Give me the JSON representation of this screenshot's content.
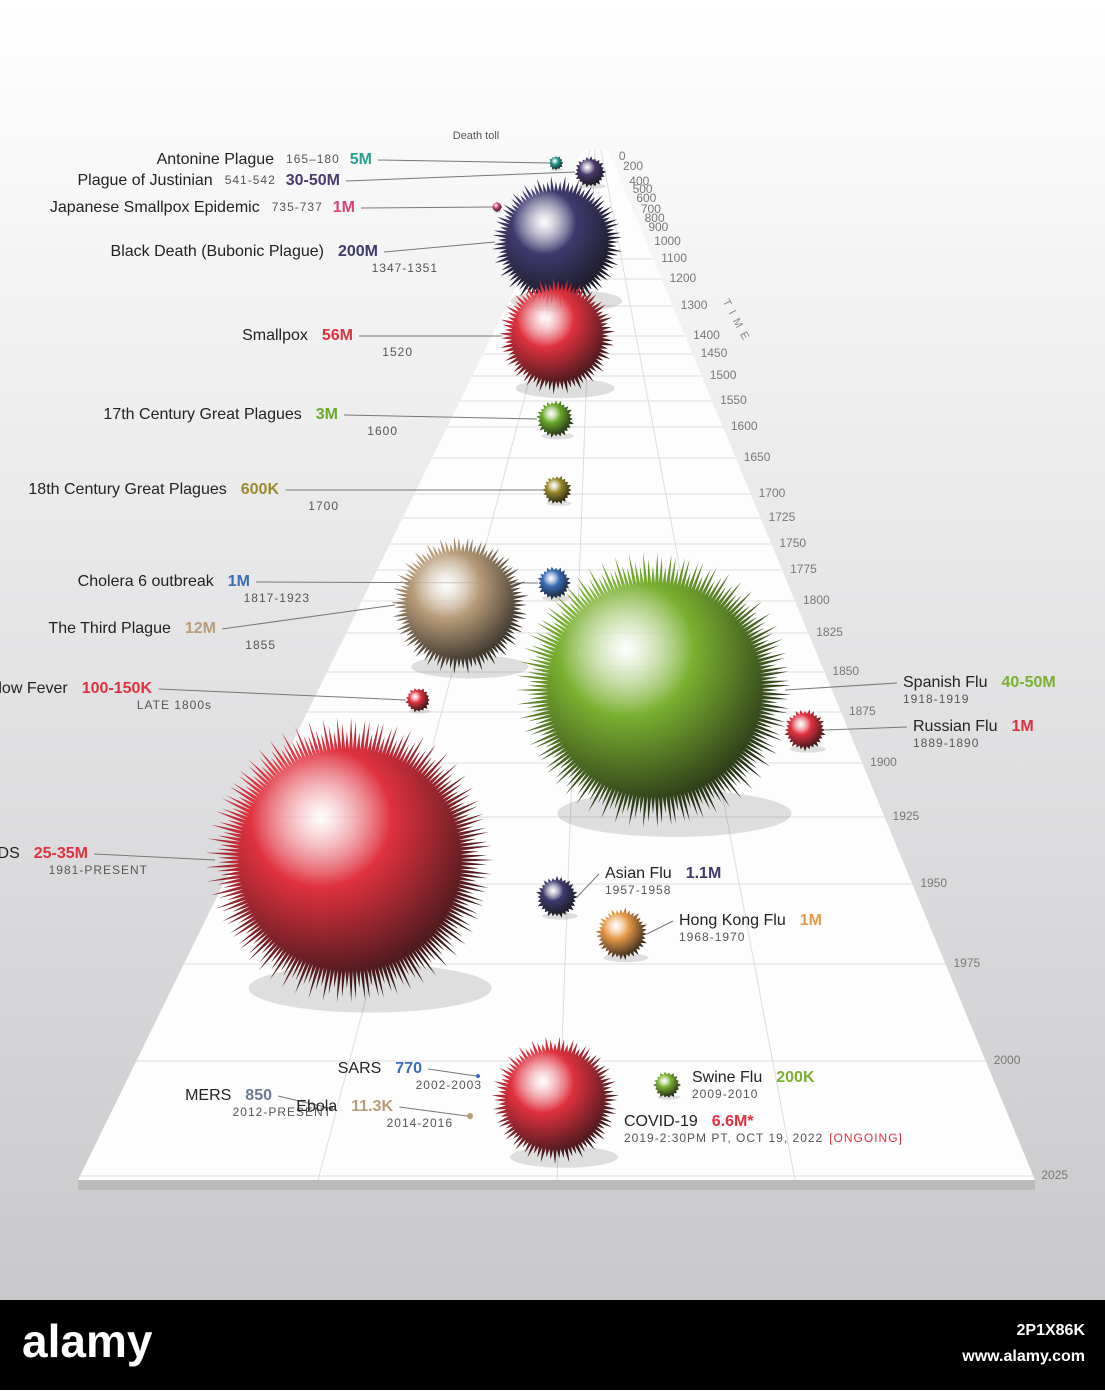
{
  "header": {
    "death_toll_label": "Death toll",
    "time_label": "TIME"
  },
  "pandemics": [
    {
      "name": "Antonine Plague",
      "years": "165–180",
      "toll": "5M",
      "color": "#2a9d8f"
    },
    {
      "name": "Plague of Justinian",
      "years": "541-542",
      "toll": "30-50M",
      "color": "#4a3b6b"
    },
    {
      "name": "Japanese Smallpox Epidemic",
      "years": "735-737",
      "toll": "1M",
      "color": "#d64575"
    },
    {
      "name": "Black Death (Bubonic Plague)",
      "years": "1347-1351",
      "toll": "200M",
      "color": "#3f3a6e"
    },
    {
      "name": "Smallpox",
      "years": "1520",
      "toll": "56M",
      "color": "#e0313f"
    },
    {
      "name": "17th Century Great Plagues",
      "years": "1600",
      "toll": "3M",
      "color": "#6aaa2a"
    },
    {
      "name": "18th Century Great Plagues",
      "years": "1700",
      "toll": "600K",
      "color": "#9a8a2a"
    },
    {
      "name": "Cholera 6 outbreak",
      "years": "1817-1923",
      "toll": "1M",
      "color": "#3a6db5"
    },
    {
      "name": "The Third Plague",
      "years": "1855",
      "toll": "12M",
      "color": "#b89c7a"
    },
    {
      "name": "Yellow Fever",
      "years": "LATE 1800s",
      "toll": "100-150K",
      "color": "#e0313f"
    },
    {
      "name": "Spanish Flu",
      "years": "1918-1919",
      "toll": "40-50M",
      "color": "#7ab030"
    },
    {
      "name": "Russian Flu",
      "years": "1889-1890",
      "toll": "1M",
      "color": "#e0313f"
    },
    {
      "name": "HIV/AIDS",
      "years": "1981-PRESENT",
      "toll": "25-35M",
      "color": "#e0313f"
    },
    {
      "name": "Asian Flu",
      "years": "1957-1958",
      "toll": "1.1M",
      "color": "#3f3a6e"
    },
    {
      "name": "Hong Kong Flu",
      "years": "1968-1970",
      "toll": "1M",
      "color": "#e89a4a"
    },
    {
      "name": "SARS",
      "years": "2002-2003",
      "toll": "770",
      "color": "#3a6db5"
    },
    {
      "name": "MERS",
      "years": "2012-PRESENT",
      "toll": "850",
      "color": "#6a7a90"
    },
    {
      "name": "Ebola",
      "years": "2014-2016",
      "toll": "11.3K",
      "color": "#b89c7a"
    },
    {
      "name": "Swine Flu",
      "years": "2009-2010",
      "toll": "200K",
      "color": "#7ab030"
    },
    {
      "name": "COVID-19",
      "years": "2019-2:30PM PT, OCT 19, 2022",
      "status": "[ONGOING]",
      "toll": "6.6M*",
      "color": "#e0313f"
    }
  ],
  "timeline": [
    "0",
    "200",
    "400",
    "500",
    "600",
    "700",
    "800",
    "900",
    "1000",
    "1100",
    "1200",
    "1300",
    "1400",
    "1450",
    "1500",
    "1550",
    "1600",
    "1650",
    "1700",
    "1725",
    "1750",
    "1775",
    "1800",
    "1825",
    "1850",
    "1875",
    "1900",
    "1925",
    "1950",
    "1975",
    "2000",
    "2025"
  ],
  "footer": {
    "brand": "alamy",
    "image_id": "2P1X86K",
    "url": "www.alamy.com"
  }
}
